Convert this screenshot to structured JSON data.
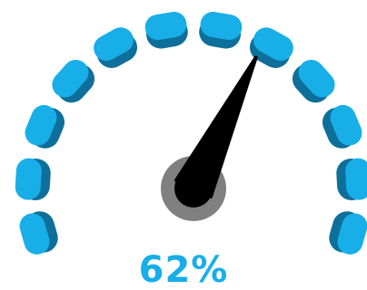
{
  "gauge": {
    "value_label": "62%",
    "level": 0.62,
    "segment_count": 12,
    "colors": {
      "segment": "#18aee8",
      "segment_shadow": "#0e6f9a",
      "needle": "#000000",
      "hub": "#808080",
      "value_text": "#18aee8"
    }
  }
}
